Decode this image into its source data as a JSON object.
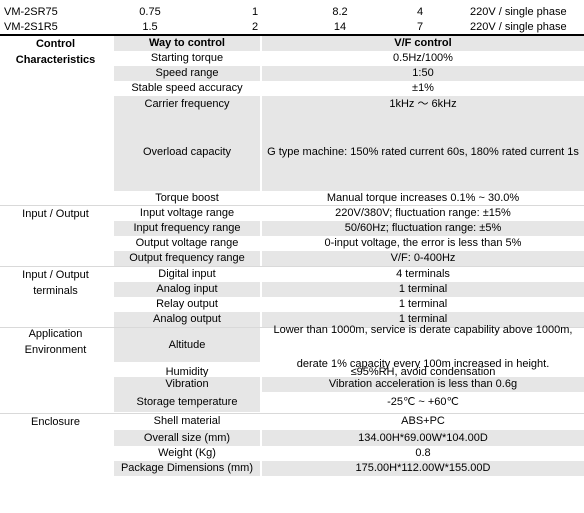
{
  "models": [
    {
      "name": "VM-2SR75",
      "power": "0.75",
      "input_phase": "1",
      "current": "8.2",
      "output": "4",
      "voltage": "220V / single phase"
    },
    {
      "name": "VM-2S1R5",
      "power": "1.5",
      "input_phase": "2",
      "current": "14",
      "output": "7",
      "voltage": "220V / single phase"
    }
  ],
  "header": {
    "group": "Control Characteristics",
    "way": "Way to control",
    "value": "V/F control"
  },
  "control": [
    {
      "way": "Starting torque",
      "value": "0.5Hz/100%"
    },
    {
      "way": "Speed range",
      "value": "1:50"
    },
    {
      "way": "Stable speed accuracy",
      "value": "±1%"
    },
    {
      "way": "Carrier frequency",
      "value": "1kHz ～ 6kHz"
    },
    {
      "way": "Overload capacity",
      "value": "G type machine: 150% rated current 60s, 180% rated current 1s"
    },
    {
      "way": "Torque boost",
      "value": "Manual torque increases 0.1% ~ 30.0%"
    }
  ],
  "io_group": "Input / Output",
  "io": [
    {
      "way": "Input voltage range",
      "value": "220V/380V; fluctuation range: ±15%"
    },
    {
      "way": "Input frequency range",
      "value": "50/60Hz; fluctuation range: ±5%"
    },
    {
      "way": "Output voltage range",
      "value": "0-input voltage, the error is less than 5%"
    },
    {
      "way": "Output frequency range",
      "value": "V/F: 0-400Hz"
    }
  ],
  "terminals_group": "Input / Output terminals",
  "terminals": [
    {
      "way": "Digital input",
      "value": "4 terminals"
    },
    {
      "way": "Analog input",
      "value": "1 terminal"
    },
    {
      "way": "Relay output",
      "value": "1 terminal"
    },
    {
      "way": "Analog output",
      "value": "1 terminal"
    }
  ],
  "env_group": "Application Environment",
  "env": {
    "altitude_label": "Altitude",
    "altitude_line1": "Lower than 1000m, service is derate capability above 1000m,",
    "altitude_line2": "derate 1% capacity every 100m increased in height.",
    "rows": [
      {
        "way": "Humidity",
        "value": "≤95%RH, avoid condensation"
      },
      {
        "way": "Vibration",
        "value": "Vibration acceleration is less than 0.6g"
      },
      {
        "way": "Storage temperature",
        "value": "-25℃ ~ +60℃"
      }
    ]
  },
  "enclosure_group": "Enclosure",
  "enclosure": [
    {
      "way": "Shell material",
      "value": "ABS+PC"
    },
    {
      "way": "Overall size (mm)",
      "value": "134.00H*69.00W*104.00D"
    },
    {
      "way": "Weight (Kg)",
      "value": "0.8"
    },
    {
      "way": "Package Dimensions (mm)",
      "value": "175.00H*112.00W*155.00D"
    }
  ]
}
